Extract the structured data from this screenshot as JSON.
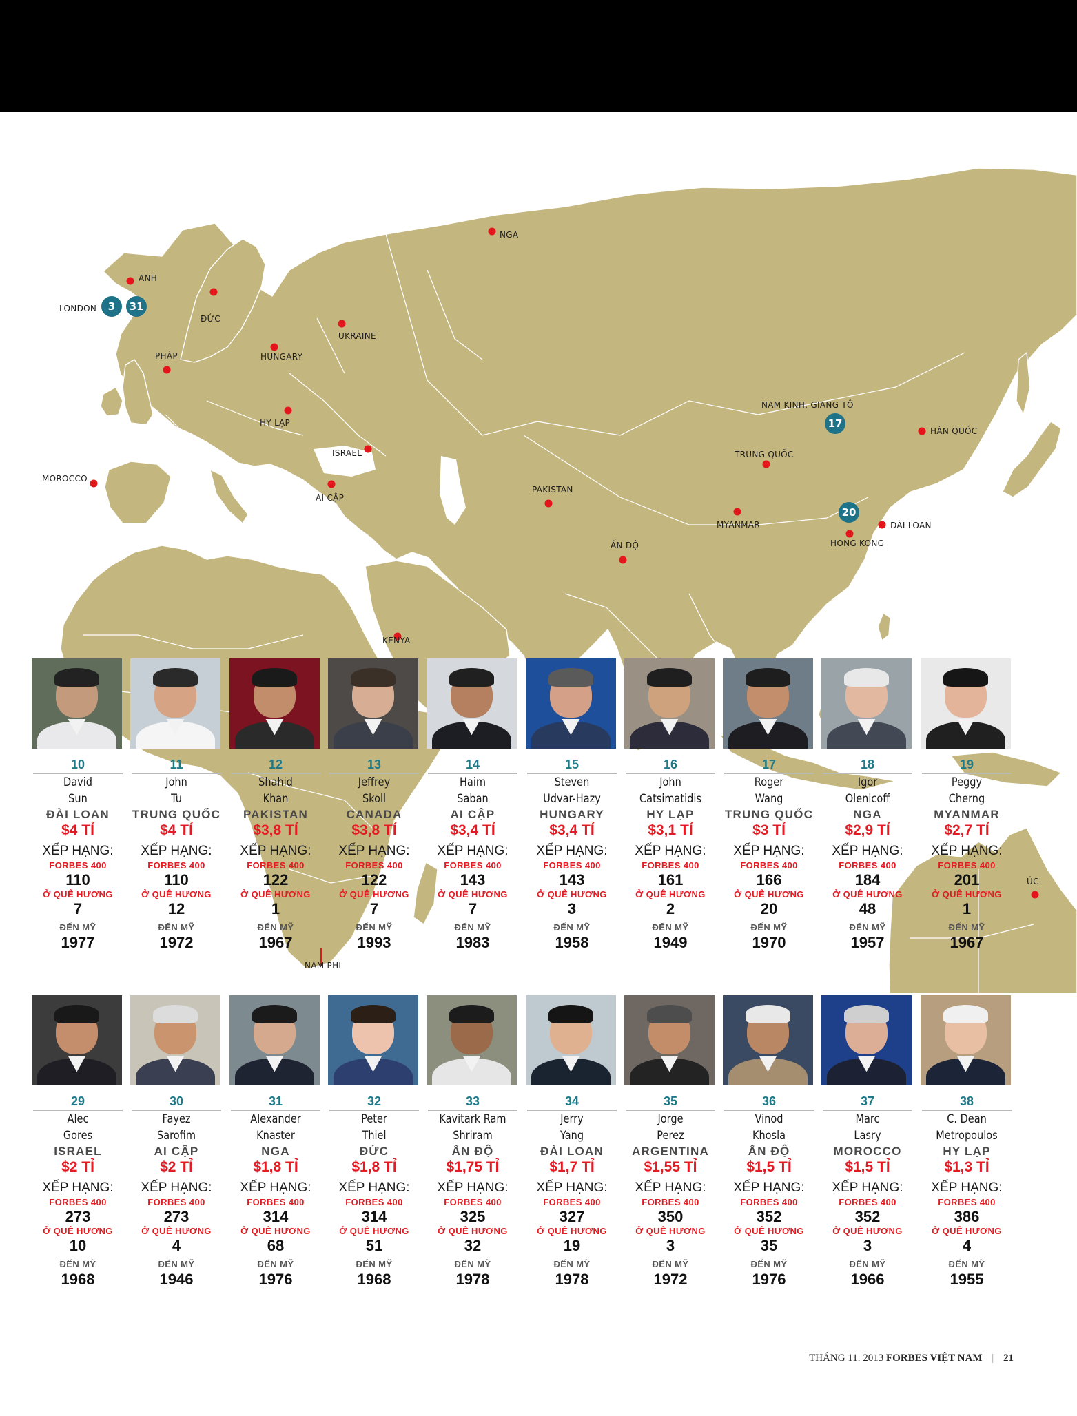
{
  "map": {
    "places": [
      {
        "label": "NGA"
      },
      {
        "label": "ANH"
      },
      {
        "label": "LONDON"
      },
      {
        "label": "ĐỨC"
      },
      {
        "label": "UKRAINE"
      },
      {
        "label": "HUNGARY"
      },
      {
        "label": "PHÁP"
      },
      {
        "label": "HY LẠP"
      },
      {
        "label": "ISRAEL"
      },
      {
        "label": "MOROCCO"
      },
      {
        "label": "AI CẬP"
      },
      {
        "label": "PAKISTAN"
      },
      {
        "label": "ẤN ĐỘ"
      },
      {
        "label": "MYANMAR"
      },
      {
        "label": "TRUNG QUỐC"
      },
      {
        "label": "NAM KINH, GIANG TÔ"
      },
      {
        "label": "HÀN QUỐC"
      },
      {
        "label": "ĐÀI LOAN"
      },
      {
        "label": "HONG KONG"
      },
      {
        "label": "KENYA"
      },
      {
        "label": "NAM PHI"
      },
      {
        "label": "ÚC"
      }
    ],
    "badges": [
      "3",
      "31",
      "17",
      "20"
    ],
    "colors": {
      "land": "#c4b67f",
      "border": "#ffffff",
      "dot": "#e3161c",
      "badge": "#1e7388"
    }
  },
  "labels": {
    "ranking": "XẾP HẠNG:",
    "forbes400": "FORBES 400",
    "hometown": "Ở QUÊ HƯƠNG",
    "to_us": "ĐẾN MỸ"
  },
  "row1": [
    {
      "rank": "10",
      "first": "David",
      "last": "Sun",
      "country": "ĐÀI LOAN",
      "worth": "$4 TỈ",
      "forbes": "110",
      "home": "7",
      "year": "1977"
    },
    {
      "rank": "11",
      "first": "John",
      "last": "Tu",
      "country": "TRUNG QUỐC",
      "worth": "$4 TỈ",
      "forbes": "110",
      "home": "12",
      "year": "1972"
    },
    {
      "rank": "12",
      "first": "Shahid",
      "last": "Khan",
      "country": "PAKISTAN",
      "worth": "$3,8 TỈ",
      "forbes": "122",
      "home": "1",
      "year": "1967"
    },
    {
      "rank": "13",
      "first": "Jeffrey",
      "last": "Skoll",
      "country": "CANADA",
      "worth": "$3,8 TỈ",
      "forbes": "122",
      "home": "7",
      "year": "1993"
    },
    {
      "rank": "14",
      "first": "Haim",
      "last": "Saban",
      "country": "AI CẬP",
      "worth": "$3,4 TỈ",
      "forbes": "143",
      "home": "7",
      "year": "1983"
    },
    {
      "rank": "15",
      "first": "Steven",
      "last": "Udvar-Hazy",
      "country": "HUNGARY",
      "worth": "$3,4 TỈ",
      "forbes": "143",
      "home": "3",
      "year": "1958"
    },
    {
      "rank": "16",
      "first": "John",
      "last": "Catsimatidis",
      "country": "HY LẠP",
      "worth": "$3,1 TỈ",
      "forbes": "161",
      "home": "2",
      "year": "1949"
    },
    {
      "rank": "17",
      "first": "Roger",
      "last": "Wang",
      "country": "TRUNG QUỐC",
      "worth": "$3 TỈ",
      "forbes": "166",
      "home": "20",
      "year": "1970"
    },
    {
      "rank": "18",
      "first": "Igor",
      "last": "Olenicoff",
      "country": "NGA",
      "worth": "$2,9 TỈ",
      "forbes": "184",
      "home": "48",
      "year": "1957"
    },
    {
      "rank": "19",
      "first": "Peggy",
      "last": "Cherng",
      "country": "MYANMAR",
      "worth": "$2,7 TỈ",
      "forbes": "201",
      "home": "1",
      "year": "1967"
    }
  ],
  "row2": [
    {
      "rank": "29",
      "first": "Alec",
      "last": "Gores",
      "country": "ISRAEL",
      "worth": "$2 TỈ",
      "forbes": "273",
      "home": "10",
      "year": "1968"
    },
    {
      "rank": "30",
      "first": "Fayez",
      "last": "Sarofim",
      "country": "AI CẬP",
      "worth": "$2 TỈ",
      "forbes": "273",
      "home": "4",
      "year": "1946"
    },
    {
      "rank": "31",
      "first": "Alexander",
      "last": "Knaster",
      "country": "NGA",
      "worth": "$1,8 TỈ",
      "forbes": "314",
      "home": "68",
      "year": "1976"
    },
    {
      "rank": "32",
      "first": "Peter",
      "last": "Thiel",
      "country": "ĐỨC",
      "worth": "$1,8 TỈ",
      "forbes": "314",
      "home": "51",
      "year": "1968"
    },
    {
      "rank": "33",
      "first": "Kavitark Ram",
      "last": "Shriram",
      "country": "ẤN ĐỘ",
      "worth": "$1,75 TỈ",
      "forbes": "325",
      "home": "32",
      "year": "1978"
    },
    {
      "rank": "34",
      "first": "Jerry",
      "last": "Yang",
      "country": "ĐÀI LOAN",
      "worth": "$1,7 TỈ",
      "forbes": "327",
      "home": "19",
      "year": "1978"
    },
    {
      "rank": "35",
      "first": "Jorge",
      "last": "Perez",
      "country": "ARGENTINA",
      "worth": "$1,55 TỈ",
      "forbes": "350",
      "home": "3",
      "year": "1972"
    },
    {
      "rank": "36",
      "first": "Vinod",
      "last": "Khosla",
      "country": "ẤN ĐỘ",
      "worth": "$1,5 TỈ",
      "forbes": "352",
      "home": "35",
      "year": "1976"
    },
    {
      "rank": "37",
      "first": "Marc",
      "last": "Lasry",
      "country": "MOROCCO",
      "worth": "$1,5 TỈ",
      "forbes": "352",
      "home": "3",
      "year": "1966"
    },
    {
      "rank": "38",
      "first": "C. Dean",
      "last": "Metropoulos",
      "country": "HY LẠP",
      "worth": "$1,3 TỈ",
      "forbes": "386",
      "home": "4",
      "year": "1955"
    }
  ],
  "footer": {
    "date": "THÁNG 11. 2013",
    "brand": "FORBES VIỆT NAM",
    "separator": "|",
    "page": "21"
  }
}
